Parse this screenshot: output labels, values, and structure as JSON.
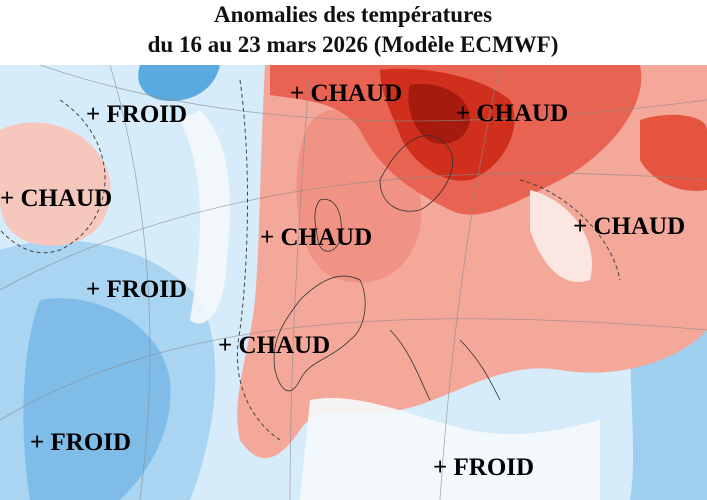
{
  "title": [
    "Anomalies des températures",
    "du 16 au 23 mars 2026 (Modèle ECMWF)"
  ],
  "labels": [
    "+ CHAUD",
    "+ FROID",
    "+ CHAUD",
    "+ CHAUD",
    "+ CHAUD",
    "+ CHAUD",
    "+ FROID",
    "+ CHAUD",
    "+ FROID",
    "+ FROID"
  ]
}
